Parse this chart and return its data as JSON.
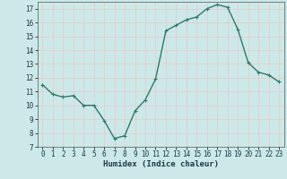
{
  "x": [
    0,
    1,
    2,
    3,
    4,
    5,
    6,
    7,
    8,
    9,
    10,
    11,
    12,
    13,
    14,
    15,
    16,
    17,
    18,
    19,
    20,
    21,
    22,
    23
  ],
  "y": [
    11.5,
    10.8,
    10.6,
    10.7,
    10.0,
    10.0,
    8.9,
    7.6,
    7.8,
    9.6,
    10.4,
    11.9,
    15.4,
    15.8,
    16.2,
    16.4,
    17.0,
    17.3,
    17.1,
    15.5,
    13.1,
    12.4,
    12.2,
    11.7
  ],
  "xlabel": "Humidex (Indice chaleur)",
  "line_color": "#2d7a6a",
  "marker_color": "#2d7a6a",
  "bg_color": "#cce8e8",
  "grid_major_color": "#e8c8c8",
  "grid_minor_color": "#dce0e0",
  "ylim": [
    7,
    17.5
  ],
  "xlim": [
    -0.5,
    23.5
  ],
  "yticks": [
    7,
    8,
    9,
    10,
    11,
    12,
    13,
    14,
    15,
    16,
    17
  ],
  "xticks": [
    0,
    1,
    2,
    3,
    4,
    5,
    6,
    7,
    8,
    9,
    10,
    11,
    12,
    13,
    14,
    15,
    16,
    17,
    18,
    19,
    20,
    21,
    22,
    23
  ],
  "tick_fontsize": 5.5,
  "label_fontsize": 6.5,
  "linewidth": 1.0,
  "markersize": 3.0
}
